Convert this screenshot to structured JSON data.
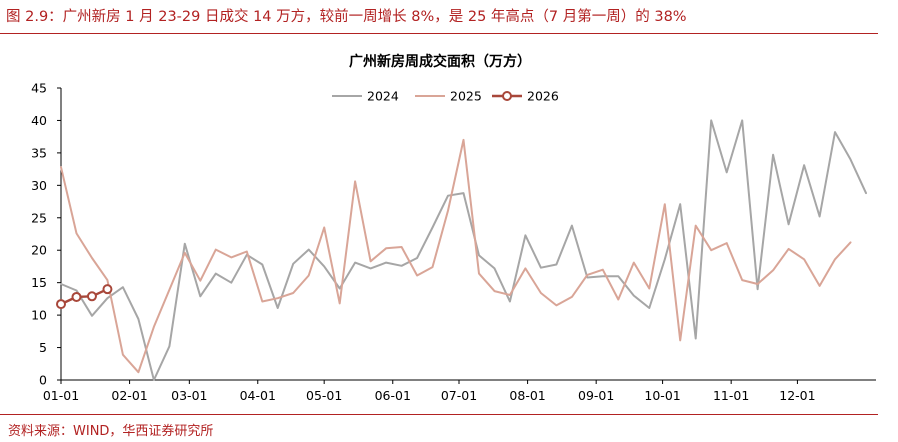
{
  "figure": {
    "title": "图 2.9：广州新房 1 月 23-29 日成交 14 万方，较前一周增长 8%，是 25 年高点（7 月第一周）的 38%",
    "source": "资料来源：WIND，华西证券研究所"
  },
  "chart_data": {
    "type": "line",
    "title": "广州新房周成交面积（万方）",
    "xlabel": "",
    "ylabel": "",
    "x_tick_labels": [
      "01-01",
      "02-01",
      "03-01",
      "04-01",
      "05-01",
      "06-01",
      "07-01",
      "08-01",
      "09-01",
      "10-01",
      "11-01",
      "12-01"
    ],
    "y_ticks": [
      0,
      5,
      10,
      15,
      20,
      25,
      30,
      35,
      40,
      45
    ],
    "ylim": [
      0,
      45
    ],
    "x_unit": "week",
    "legend_position": "top-center",
    "grid": false,
    "series": [
      {
        "name": "2024",
        "color": "#a6a6a6",
        "marker": false,
        "values": [
          14.8,
          13.8,
          9.9,
          12.6,
          14.3,
          9.4,
          0.0,
          5.2,
          21.0,
          12.9,
          16.4,
          15.0,
          19.3,
          17.8,
          11.1,
          17.9,
          20.1,
          17.5,
          14.1,
          18.1,
          17.2,
          18.1,
          17.6,
          18.8,
          23.5,
          28.4,
          28.8,
          19.2,
          17.2,
          12.1,
          22.3,
          17.3,
          17.8,
          23.8,
          15.8,
          16.0,
          16.0,
          13.0,
          11.1,
          18.6,
          27.1,
          6.4,
          40.0,
          32.0,
          40.0,
          14.0,
          34.7,
          24.0,
          33.1,
          25.2,
          38.2,
          34.0,
          28.8
        ]
      },
      {
        "name": "2025",
        "color": "#d9a597",
        "marker": false,
        "values": [
          32.8,
          22.6,
          18.8,
          15.4,
          3.9,
          1.2,
          8.2,
          13.9,
          19.6,
          15.3,
          20.1,
          18.9,
          19.8,
          12.1,
          12.6,
          13.4,
          16.1,
          23.5,
          11.8,
          30.6,
          18.3,
          20.3,
          20.5,
          16.1,
          17.4,
          26.1,
          37.0,
          16.4,
          13.7,
          13.1,
          17.2,
          13.4,
          11.5,
          12.8,
          16.2,
          17.0,
          12.4,
          18.1,
          14.1,
          27.1,
          6.1,
          23.8,
          20.0,
          21.1,
          15.4,
          14.8,
          16.9,
          20.2,
          18.6,
          14.5,
          18.6,
          21.2
        ]
      },
      {
        "name": "2026",
        "color": "#a8473a",
        "marker": true,
        "values": [
          11.7,
          12.8,
          12.9,
          14.0
        ]
      }
    ]
  }
}
